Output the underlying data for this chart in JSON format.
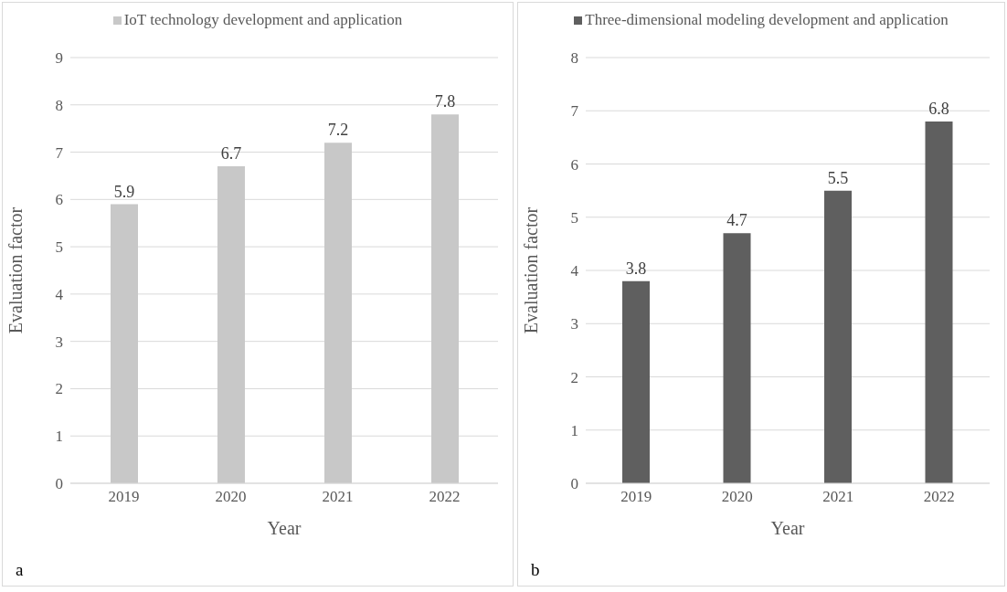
{
  "chart_data": [
    {
      "type": "bar",
      "categories": [
        "2019",
        "2020",
        "2021",
        "2022"
      ],
      "series": [
        {
          "name": "IoT technology development and application",
          "color": "#c8c8c8",
          "values": [
            5.9,
            6.7,
            7.2,
            7.8
          ]
        }
      ],
      "xlabel": "Year",
      "ylabel": "Evaluation factor",
      "ylim": [
        0,
        9
      ],
      "yticks": [
        0,
        1,
        2,
        3,
        4,
        5,
        6,
        7,
        8,
        9
      ],
      "grid": "y",
      "legend": "top",
      "data_labels": true,
      "annotations": [
        "a"
      ]
    },
    {
      "type": "bar",
      "categories": [
        "2019",
        "2020",
        "2021",
        "2022"
      ],
      "series": [
        {
          "name": "Three-dimensional modeling development and application",
          "color": "#5f5f5f",
          "values": [
            3.8,
            4.7,
            5.5,
            6.8
          ]
        }
      ],
      "xlabel": "Year",
      "ylabel": "Evaluation factor",
      "ylim": [
        0,
        8
      ],
      "yticks": [
        0,
        1,
        2,
        3,
        4,
        5,
        6,
        7,
        8
      ],
      "grid": "y",
      "legend": "top",
      "data_labels": true,
      "annotations": [
        "b"
      ]
    }
  ]
}
